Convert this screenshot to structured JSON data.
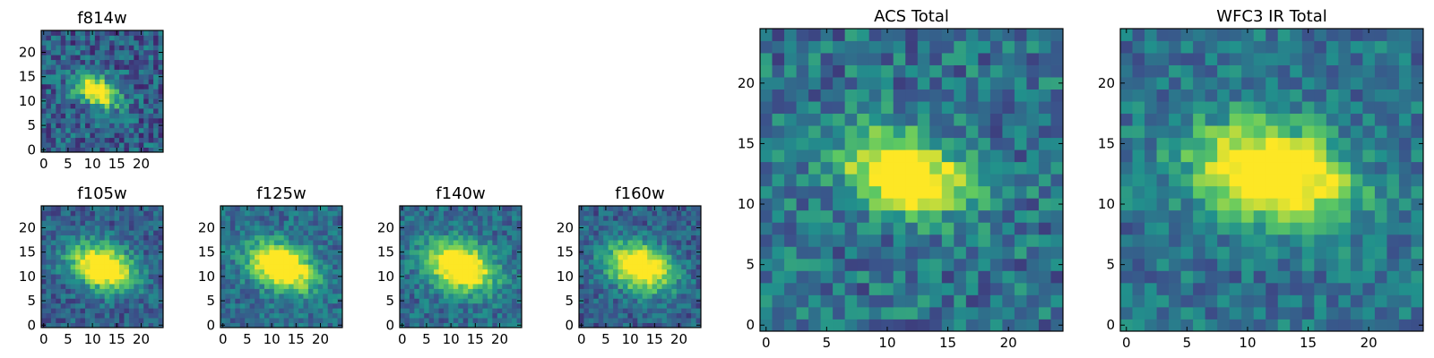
{
  "figure": {
    "background": "#ffffff",
    "colormap": "viridis",
    "colormap_stops": [
      "#440154",
      "#3b528b",
      "#21918c",
      "#5ec962",
      "#fde725"
    ]
  },
  "chart_data": [
    {
      "id": "f814w",
      "type": "heatmap",
      "title": "f814w",
      "grid_size": 25,
      "xlim": [
        0,
        24
      ],
      "ylim": [
        0,
        24
      ],
      "x_ticks": [
        "0",
        "5",
        "10",
        "15",
        "20"
      ],
      "y_ticks": [
        "0",
        "5",
        "10",
        "15",
        "20"
      ],
      "center": [
        11,
        12
      ],
      "sigma_major": 3.2,
      "sigma_minor": 1.8,
      "angle_deg": -25,
      "background_level": 0.3,
      "noise_level": 0.2
    },
    {
      "id": "f105w",
      "type": "heatmap",
      "title": "f105w",
      "grid_size": 25,
      "xlim": [
        0,
        24
      ],
      "ylim": [
        0,
        24
      ],
      "x_ticks": [
        "0",
        "5",
        "10",
        "15",
        "20"
      ],
      "y_ticks": [
        "0",
        "5",
        "10",
        "15",
        "20"
      ],
      "center": [
        12,
        12
      ],
      "sigma_major": 4.6,
      "sigma_minor": 3.0,
      "angle_deg": -20,
      "background_level": 0.3,
      "noise_level": 0.15
    },
    {
      "id": "f125w",
      "type": "heatmap",
      "title": "f125w",
      "grid_size": 25,
      "xlim": [
        0,
        24
      ],
      "ylim": [
        0,
        24
      ],
      "x_ticks": [
        "0",
        "5",
        "10",
        "15",
        "20"
      ],
      "y_ticks": [
        "0",
        "5",
        "10",
        "15",
        "20"
      ],
      "center": [
        12,
        12
      ],
      "sigma_major": 4.8,
      "sigma_minor": 3.0,
      "angle_deg": -25,
      "background_level": 0.35,
      "noise_level": 0.15
    },
    {
      "id": "f140w",
      "type": "heatmap",
      "title": "f140w",
      "grid_size": 25,
      "xlim": [
        0,
        24
      ],
      "ylim": [
        0,
        24
      ],
      "x_ticks": [
        "0",
        "5",
        "10",
        "15",
        "20"
      ],
      "y_ticks": [
        "0",
        "5",
        "10",
        "15",
        "20"
      ],
      "center": [
        12,
        12
      ],
      "sigma_major": 4.8,
      "sigma_minor": 3.2,
      "angle_deg": -20,
      "background_level": 0.35,
      "noise_level": 0.15
    },
    {
      "id": "f160w",
      "type": "heatmap",
      "title": "f160w",
      "grid_size": 25,
      "xlim": [
        0,
        24
      ],
      "ylim": [
        0,
        24
      ],
      "x_ticks": [
        "0",
        "5",
        "10",
        "15",
        "20"
      ],
      "y_ticks": [
        "0",
        "5",
        "10",
        "15",
        "20"
      ],
      "center": [
        12,
        12
      ],
      "sigma_major": 4.8,
      "sigma_minor": 3.2,
      "angle_deg": -20,
      "background_level": 0.3,
      "noise_level": 0.15
    },
    {
      "id": "acs_total",
      "type": "heatmap",
      "title": "ACS Total",
      "grid_size": 25,
      "xlim": [
        0,
        24
      ],
      "ylim": [
        0,
        24
      ],
      "x_ticks": [
        "0",
        "5",
        "10",
        "15",
        "20"
      ],
      "y_ticks": [
        "0",
        "5",
        "10",
        "15",
        "20"
      ],
      "center": [
        11.5,
        12.5
      ],
      "sigma_major": 3.4,
      "sigma_minor": 2.0,
      "angle_deg": -18,
      "background_level": 0.38,
      "noise_level": 0.2
    },
    {
      "id": "wfc3_ir_total",
      "type": "heatmap",
      "title": "WFC3 IR Total",
      "grid_size": 25,
      "xlim": [
        0,
        24
      ],
      "ylim": [
        0,
        24
      ],
      "x_ticks": [
        "0",
        "5",
        "10",
        "15",
        "20"
      ],
      "y_ticks": [
        "0",
        "5",
        "10",
        "15",
        "20"
      ],
      "center": [
        12,
        12.5
      ],
      "sigma_major": 4.4,
      "sigma_minor": 2.6,
      "angle_deg": -15,
      "background_level": 0.38,
      "noise_level": 0.16
    }
  ]
}
